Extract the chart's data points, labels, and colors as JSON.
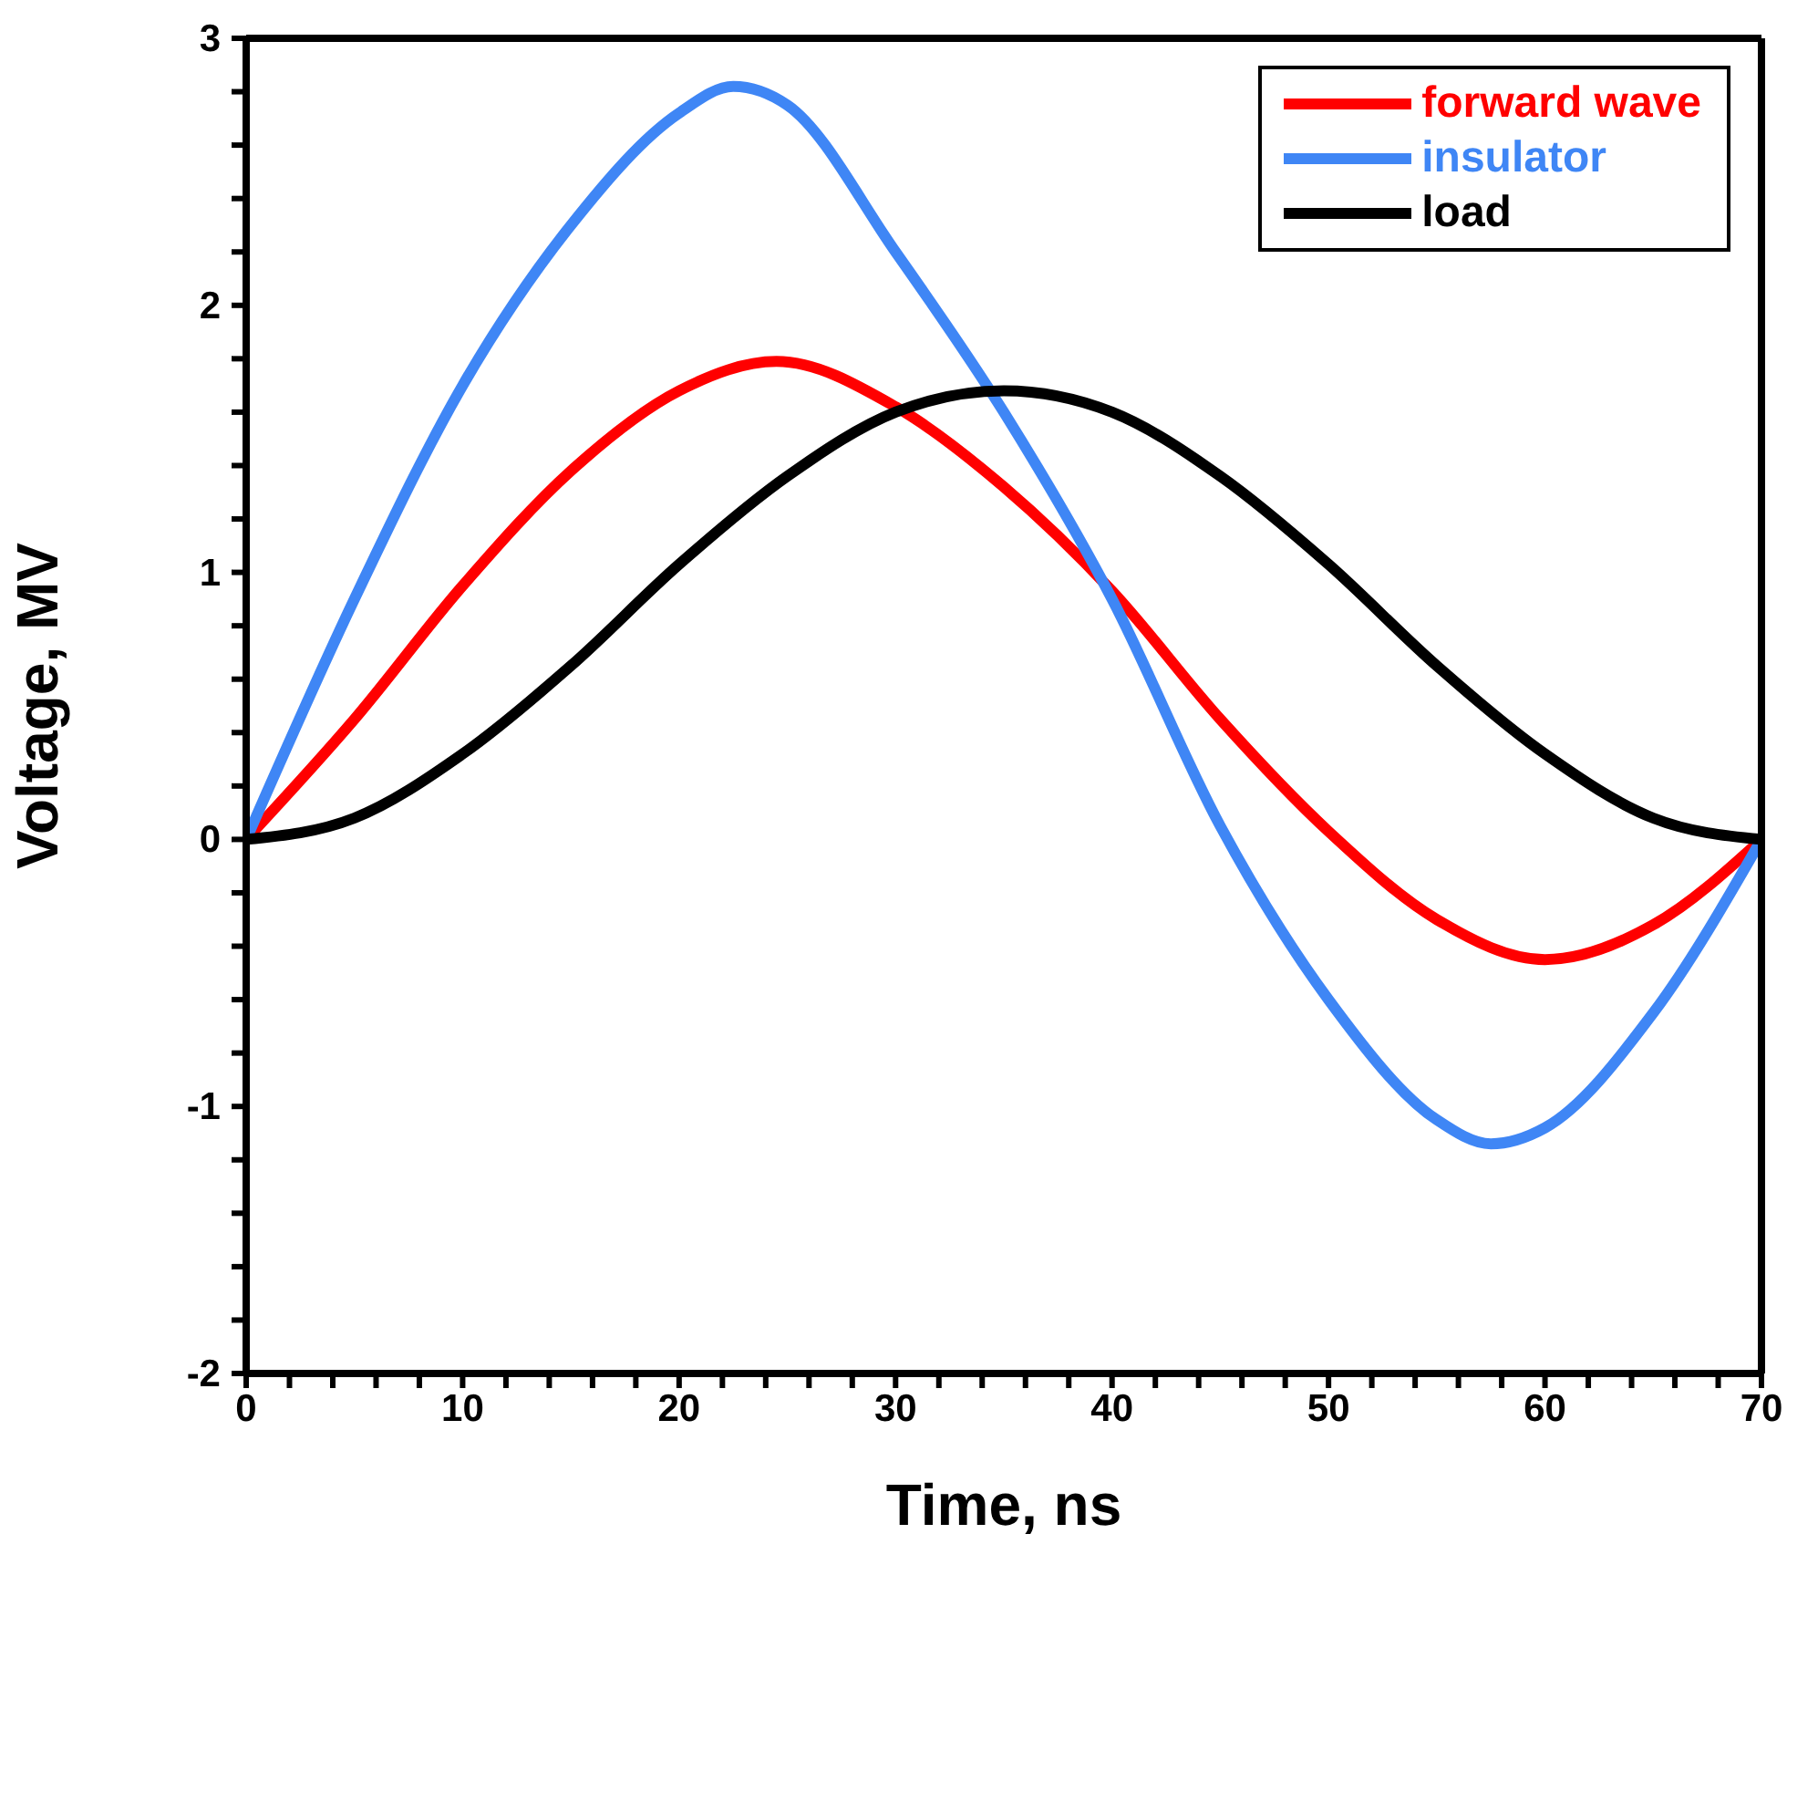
{
  "chart_data": {
    "type": "line",
    "xlabel": "Time, ns",
    "ylabel": "Voltage, MV",
    "xlim": [
      0,
      70
    ],
    "ylim": [
      -2,
      3
    ],
    "xticks": [
      0,
      {
        "value": 2,
        "label": null
      },
      {
        "value": 4,
        "label": null
      },
      {
        "value": 6,
        "label": null
      },
      {
        "value": 8,
        "label": null
      },
      10,
      {
        "value": 12,
        "label": null
      },
      {
        "value": 14,
        "label": null
      },
      {
        "value": 16,
        "label": null
      },
      {
        "value": 18,
        "label": null
      },
      20,
      {
        "value": 22,
        "label": null
      },
      {
        "value": 24,
        "label": null
      },
      {
        "value": 26,
        "label": null
      },
      {
        "value": 28,
        "label": null
      },
      30,
      {
        "value": 32,
        "label": null
      },
      {
        "value": 34,
        "label": null
      },
      {
        "value": 36,
        "label": null
      },
      {
        "value": 38,
        "label": null
      },
      40,
      {
        "value": 42,
        "label": null
      },
      {
        "value": 44,
        "label": null
      },
      {
        "value": 46,
        "label": null
      },
      {
        "value": 48,
        "label": null
      },
      50,
      {
        "value": 52,
        "label": null
      },
      {
        "value": 54,
        "label": null
      },
      {
        "value": 56,
        "label": null
      },
      {
        "value": 58,
        "label": null
      },
      60,
      {
        "value": 62,
        "label": null
      },
      {
        "value": 64,
        "label": null
      },
      {
        "value": 66,
        "label": null
      },
      {
        "value": 68,
        "label": null
      },
      70
    ],
    "yticks": [
      -2,
      {
        "value": -1.8,
        "label": null
      },
      {
        "value": -1.6,
        "label": null
      },
      {
        "value": -1.4,
        "label": null
      },
      {
        "value": -1.2,
        "label": null
      },
      -1,
      {
        "value": -0.8,
        "label": null
      },
      {
        "value": -0.6,
        "label": null
      },
      {
        "value": -0.4,
        "label": null
      },
      {
        "value": -0.2,
        "label": null
      },
      0,
      {
        "value": 0.2,
        "label": null
      },
      {
        "value": 0.4,
        "label": null
      },
      {
        "value": 0.6,
        "label": null
      },
      {
        "value": 0.8,
        "label": null
      },
      1,
      {
        "value": 1.2,
        "label": null
      },
      {
        "value": 1.4,
        "label": null
      },
      {
        "value": 1.6,
        "label": null
      },
      {
        "value": 1.8,
        "label": null
      },
      2,
      {
        "value": 2.2,
        "label": null
      },
      {
        "value": 2.4,
        "label": null
      },
      {
        "value": 2.6,
        "label": null
      },
      {
        "value": 2.8,
        "label": null
      },
      3
    ],
    "legend": "top right",
    "marker": "none",
    "line_style": "solid",
    "series": [
      {
        "name": "forward wave",
        "color": "#ff0000",
        "x": [
          0,
          5,
          10,
          15,
          20,
          24.5,
          30,
          35,
          40,
          45,
          50,
          55,
          60,
          65,
          70
        ],
        "values": [
          0,
          0.45,
          0.95,
          1.38,
          1.68,
          1.79,
          1.62,
          1.32,
          0.93,
          0.45,
          0.03,
          -0.3,
          -0.45,
          -0.32,
          0
        ]
      },
      {
        "name": "insulator",
        "color": "#3f86f5",
        "x": [
          0,
          5,
          10,
          15,
          20,
          22.5,
          25,
          30,
          35,
          40,
          45,
          50,
          55,
          57.5,
          60,
          65,
          70
        ],
        "values": [
          0,
          0.9,
          1.7,
          2.3,
          2.72,
          2.82,
          2.75,
          2.2,
          1.6,
          0.9,
          0.05,
          -0.6,
          -1.05,
          -1.14,
          -1.08,
          -0.65,
          0
        ]
      },
      {
        "name": "load",
        "color": "#000000",
        "x": [
          0,
          5,
          10,
          15,
          20,
          25,
          30,
          35,
          40,
          45,
          50,
          55,
          60,
          65,
          70
        ],
        "values": [
          0,
          0.08,
          0.32,
          0.65,
          1.03,
          1.36,
          1.6,
          1.68,
          1.6,
          1.36,
          1.03,
          0.65,
          0.32,
          0.08,
          0
        ]
      }
    ]
  }
}
